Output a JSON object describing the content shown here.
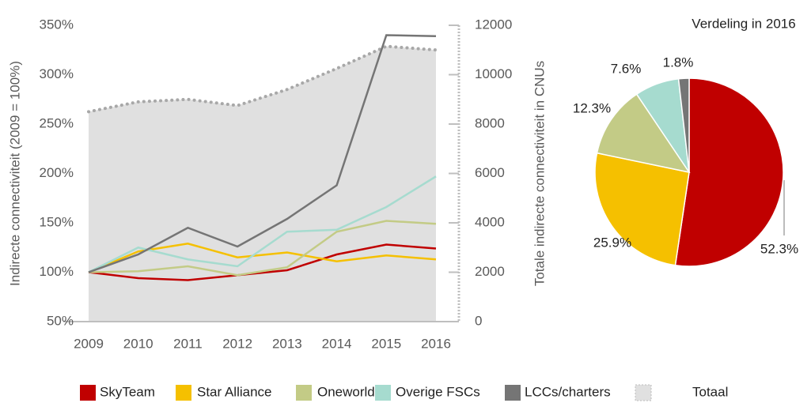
{
  "chart_data": [
    {
      "type": "line",
      "ylabel": "Indirecte connectiviteit (2009 = 100%)",
      "y2label": "Totale indirecte connectiviteit in CNUs",
      "categories": [
        "2009",
        "2010",
        "2011",
        "2012",
        "2013",
        "2014",
        "2015",
        "2016"
      ],
      "ylim": [
        50,
        350
      ],
      "yticks": [
        {
          "value": 50,
          "label": "50%"
        },
        {
          "value": 100,
          "label": "100%"
        },
        {
          "value": 150,
          "label": "150%"
        },
        {
          "value": 200,
          "label": "200%"
        },
        {
          "value": 250,
          "label": "250%"
        },
        {
          "value": 300,
          "label": "300%"
        },
        {
          "value": 350,
          "label": "350%"
        }
      ],
      "y2lim": [
        0,
        12000
      ],
      "y2ticks": [
        0,
        2000,
        4000,
        6000,
        8000,
        10000,
        12000
      ],
      "series": [
        {
          "name": "SkyTeam",
          "color": "#c00000",
          "values": [
            100,
            94,
            92,
            97,
            102,
            118,
            128,
            124
          ]
        },
        {
          "name": "Star Alliance",
          "color": "#f5c000",
          "values": [
            100,
            121,
            129,
            115,
            120,
            111,
            117,
            113
          ]
        },
        {
          "name": "Oneworld",
          "color": "#c3cb86",
          "values": [
            100,
            101,
            106,
            97,
            105,
            141,
            152,
            149
          ]
        },
        {
          "name": "Overige FSCs",
          "color": "#a6dbcf",
          "values": [
            100,
            125,
            113,
            106,
            141,
            143,
            166,
            197
          ]
        },
        {
          "name": "LCCs/charters",
          "color": "#757575",
          "values": [
            100,
            118,
            145,
            126,
            154,
            188,
            340,
            339
          ]
        },
        {
          "name": "Totaal",
          "color": "#e0e0e0",
          "type": "area",
          "axis": "y2",
          "values": [
            8500,
            8900,
            9000,
            8750,
            9400,
            10250,
            11150,
            11000
          ]
        }
      ],
      "legend": "bottom"
    },
    {
      "type": "pie",
      "title": "Verdeling in 2016",
      "values": [
        52.3,
        25.9,
        12.3,
        7.6,
        1.8
      ],
      "value_labels": [
        "52.3%",
        "25.9%",
        "12.3%",
        "7.6%",
        "1.8%"
      ],
      "colors": [
        "#c00000",
        "#f5c000",
        "#c3cb86",
        "#a6dbcf",
        "#757575"
      ]
    }
  ]
}
